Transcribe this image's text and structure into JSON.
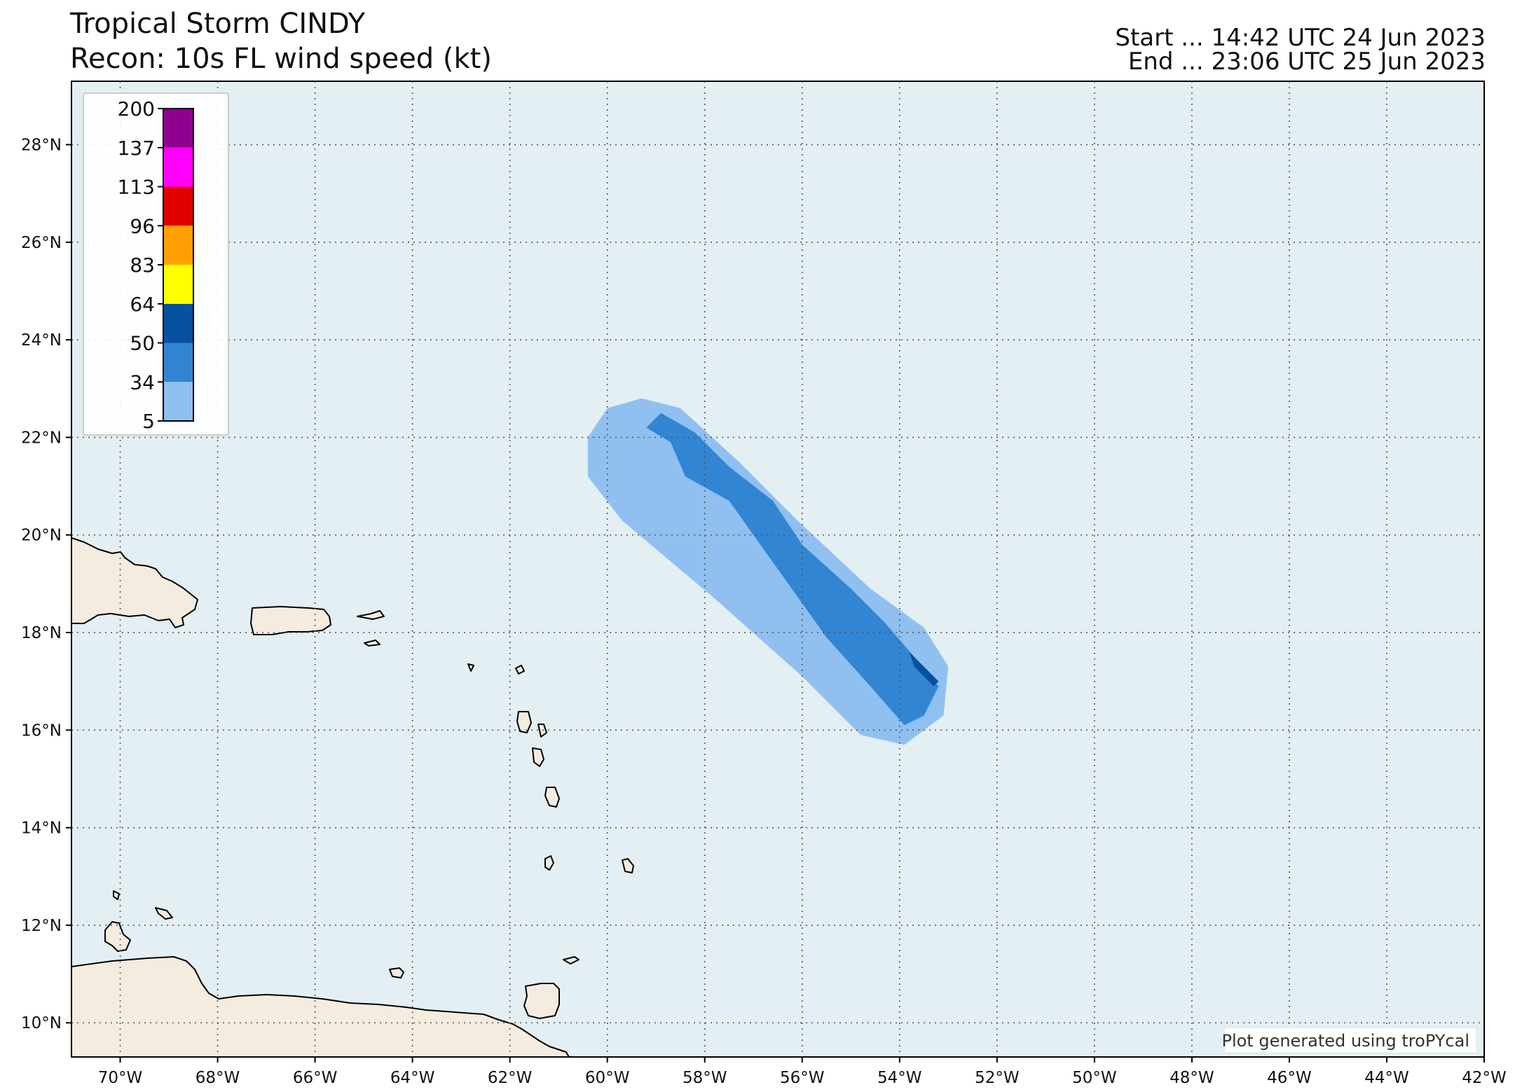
{
  "header": {
    "title_line1": "Tropical Storm CINDY",
    "title_line2": "Recon: 10s FL wind speed (kt)",
    "start": "Start ... 14:42 UTC 24 Jun 2023",
    "end": "End ... 23:06 UTC 25 Jun 2023"
  },
  "map": {
    "extent": {
      "lon_min": -71,
      "lon_max": -42,
      "lat_min": 9.3,
      "lat_max": 29.3
    },
    "lon_ticks": [
      {
        "value": -70,
        "label": "70°W"
      },
      {
        "value": -68,
        "label": "68°W"
      },
      {
        "value": -66,
        "label": "66°W"
      },
      {
        "value": -64,
        "label": "64°W"
      },
      {
        "value": -62,
        "label": "62°W"
      },
      {
        "value": -60,
        "label": "60°W"
      },
      {
        "value": -58,
        "label": "58°W"
      },
      {
        "value": -56,
        "label": "56°W"
      },
      {
        "value": -54,
        "label": "54°W"
      },
      {
        "value": -52,
        "label": "52°W"
      },
      {
        "value": -50,
        "label": "50°W"
      },
      {
        "value": -48,
        "label": "48°W"
      },
      {
        "value": -46,
        "label": "46°W"
      },
      {
        "value": -44,
        "label": "44°W"
      },
      {
        "value": -42,
        "label": "42°W"
      }
    ],
    "lat_ticks": [
      {
        "value": 10,
        "label": "10°N"
      },
      {
        "value": 12,
        "label": "12°N"
      },
      {
        "value": 14,
        "label": "14°N"
      },
      {
        "value": 16,
        "label": "16°N"
      },
      {
        "value": 18,
        "label": "18°N"
      },
      {
        "value": 20,
        "label": "20°N"
      },
      {
        "value": 22,
        "label": "22°N"
      },
      {
        "value": 24,
        "label": "24°N"
      },
      {
        "value": 26,
        "label": "26°N"
      },
      {
        "value": 28,
        "label": "28°N"
      }
    ],
    "gridlines": true,
    "ocean_color": "#e3eff2",
    "land_color": "#f5ece0"
  },
  "colorbar": {
    "placement": "upper-left",
    "bins": [
      {
        "label": "5",
        "color": "#90c0f0"
      },
      {
        "label": "34",
        "color": "#3185d3"
      },
      {
        "label": "50",
        "color": "#0850a0"
      },
      {
        "label": "64",
        "color": "#ffff00"
      },
      {
        "label": "83",
        "color": "#ffa000"
      },
      {
        "label": "96",
        "color": "#e10000"
      },
      {
        "label": "113",
        "color": "#ff00ff"
      },
      {
        "label": "137",
        "color": "#900090"
      }
    ],
    "top_label": "200"
  },
  "swath": {
    "wind_34_kt": [
      [
        -59.3,
        22.8
      ],
      [
        -58.5,
        22.6
      ],
      [
        -57.3,
        21.5
      ],
      [
        -56.1,
        20.3
      ],
      [
        -54.6,
        18.9
      ],
      [
        -53.5,
        18.1
      ],
      [
        -53.0,
        17.3
      ],
      [
        -53.1,
        16.3
      ],
      [
        -53.9,
        15.7
      ],
      [
        -54.8,
        15.9
      ],
      [
        -56.0,
        17.1
      ],
      [
        -57.8,
        18.7
      ],
      [
        -59.7,
        20.3
      ],
      [
        -60.4,
        21.2
      ],
      [
        -60.4,
        22.0
      ],
      [
        -60.0,
        22.6
      ]
    ],
    "wind_50_kt": [
      [
        -58.9,
        22.5
      ],
      [
        -58.2,
        22.1
      ],
      [
        -57.5,
        21.4
      ],
      [
        -56.6,
        20.7
      ],
      [
        -56.0,
        19.8
      ],
      [
        -55.0,
        18.9
      ],
      [
        -54.3,
        18.2
      ],
      [
        -53.7,
        17.5
      ],
      [
        -53.2,
        16.9
      ],
      [
        -53.5,
        16.3
      ],
      [
        -53.9,
        16.1
      ],
      [
        -54.6,
        16.9
      ],
      [
        -55.5,
        17.9
      ],
      [
        -56.5,
        19.3
      ],
      [
        -57.5,
        20.7
      ],
      [
        -58.4,
        21.2
      ],
      [
        -58.7,
        21.9
      ],
      [
        -59.2,
        22.2
      ]
    ],
    "wind_64_kt": [
      [
        -53.8,
        17.6
      ],
      [
        -53.2,
        17.0
      ],
      [
        -53.3,
        16.9
      ],
      [
        -53.7,
        17.3
      ]
    ]
  },
  "credit": "Plot generated using troPYcal"
}
